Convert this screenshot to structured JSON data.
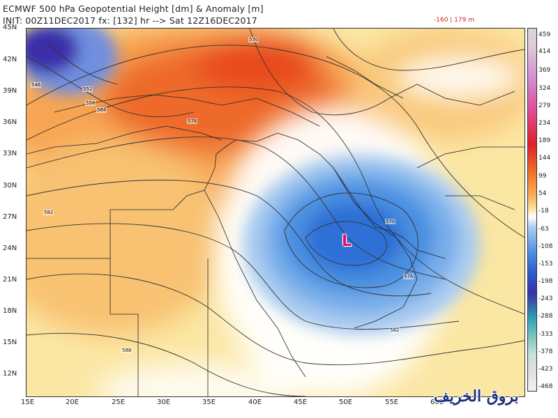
{
  "title_line1": "ECMWF 500 hPa Geopotential Height [dm] & Anomaly [m]",
  "title_line2": "INIT: 00Z11DEC2017 fx: [132] hr --> Sat 12Z16DEC2017",
  "anomaly_range": "-160 | 179 m",
  "low_label": "L",
  "watermark": "بروق الخريف",
  "lat_labels": [
    "45N",
    "42N",
    "39N",
    "36N",
    "33N",
    "30N",
    "27N",
    "24N",
    "21N",
    "18N",
    "15N",
    "12N"
  ],
  "lon_labels": [
    "15E",
    "20E",
    "25E",
    "30E",
    "35E",
    "40E",
    "45E",
    "50E",
    "55E",
    "60E"
  ],
  "colorbar_ticks": [
    "459",
    "414",
    "369",
    "324",
    "279",
    "234",
    "189",
    "144",
    "99",
    "54",
    "-18",
    "-63",
    "-108",
    "-153",
    "-198",
    "-243",
    "-288",
    "-333",
    "-378",
    "-423",
    "-468"
  ],
  "contour_labels": [
    "570",
    "582",
    "582",
    "588",
    "576",
    "546",
    "552",
    "558",
    "564",
    "576",
    "570",
    "576",
    "582"
  ],
  "colors": {
    "positive_strong": "#e84a1c",
    "positive_mid": "#f7a552",
    "positive_weak": "#fbe7a4",
    "neutral": "#ffffff",
    "negative_weak": "#a9cbef",
    "negative_mid": "#4a8fe0",
    "negative_strong": "#1f58c8",
    "extreme_negative": "#3a2fa8",
    "low_marker": "#e0106e"
  }
}
